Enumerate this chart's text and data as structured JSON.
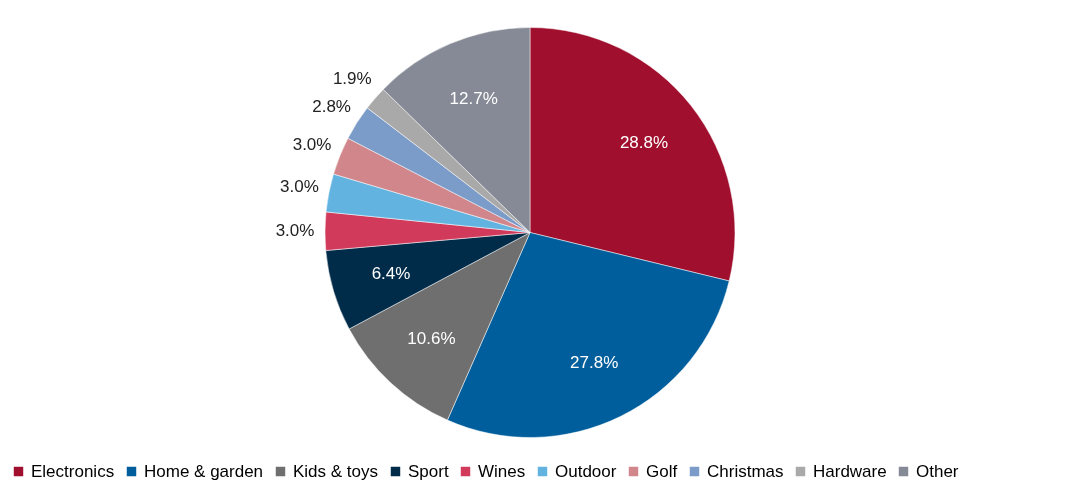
{
  "chart_data": {
    "type": "pie",
    "categories": [
      "Electronics",
      "Home & garden",
      "Kids & toys",
      "Sport",
      "Wines",
      "Outdoor",
      "Golf",
      "Christmas",
      "Hardware",
      "Other"
    ],
    "values": [
      28.8,
      27.8,
      10.6,
      6.4,
      3.0,
      3.0,
      3.0,
      2.8,
      1.9,
      12.7
    ],
    "colors": [
      "#a0102e",
      "#005e9c",
      "#6f6f6f",
      "#002b49",
      "#d13a5a",
      "#63b3e0",
      "#d0868a",
      "#7b9bc8",
      "#a9a9a9",
      "#858a96"
    ],
    "value_labels": [
      "28.8%",
      "27.8%",
      "10.6%",
      "6.4%",
      "3.0%",
      "3.0%",
      "3.0%",
      "2.8%",
      "1.9%",
      "12.7%"
    ],
    "legend": "bottom"
  }
}
